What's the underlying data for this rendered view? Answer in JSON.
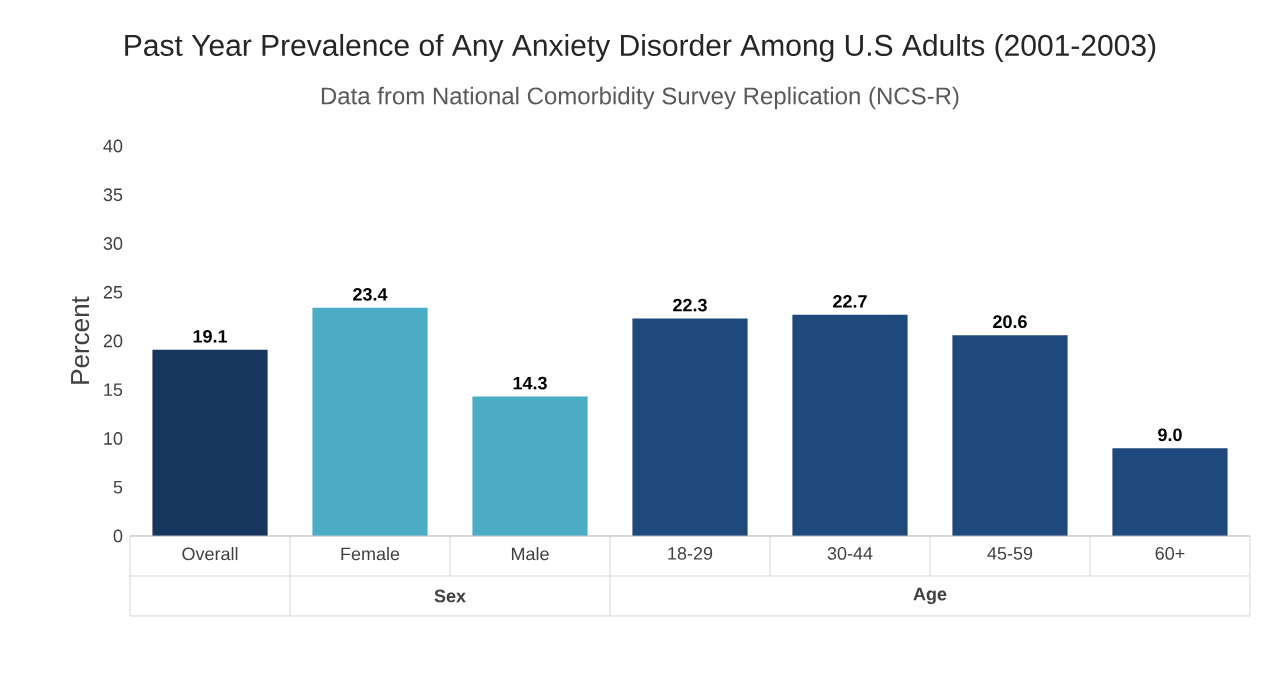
{
  "chart_data": {
    "type": "bar",
    "title": "Past Year Prevalence of Any Anxiety Disorder Among U.S Adults (2001-2003)",
    "subtitle": "Data from National Comorbidity Survey Replication (NCS-R)",
    "ylabel": "Percent",
    "categories": [
      "Overall",
      "Female",
      "Male",
      "18-29",
      "30-44",
      "45-59",
      "60+"
    ],
    "values": [
      19.1,
      23.4,
      14.3,
      22.3,
      22.7,
      20.6,
      9.0
    ],
    "value_labels": [
      "19.1",
      "23.4",
      "14.3",
      "22.3",
      "22.7",
      "20.6",
      "9.0"
    ],
    "colors": [
      "#17375e",
      "#4bacc6",
      "#4bacc6",
      "#1f497d",
      "#1f497d",
      "#1f497d",
      "#1f497d"
    ],
    "ylim": [
      0,
      40
    ],
    "yticks": [
      0,
      5,
      10,
      15,
      20,
      25,
      30,
      35,
      40
    ],
    "annotations": [
      "Sex",
      "Age"
    ]
  }
}
